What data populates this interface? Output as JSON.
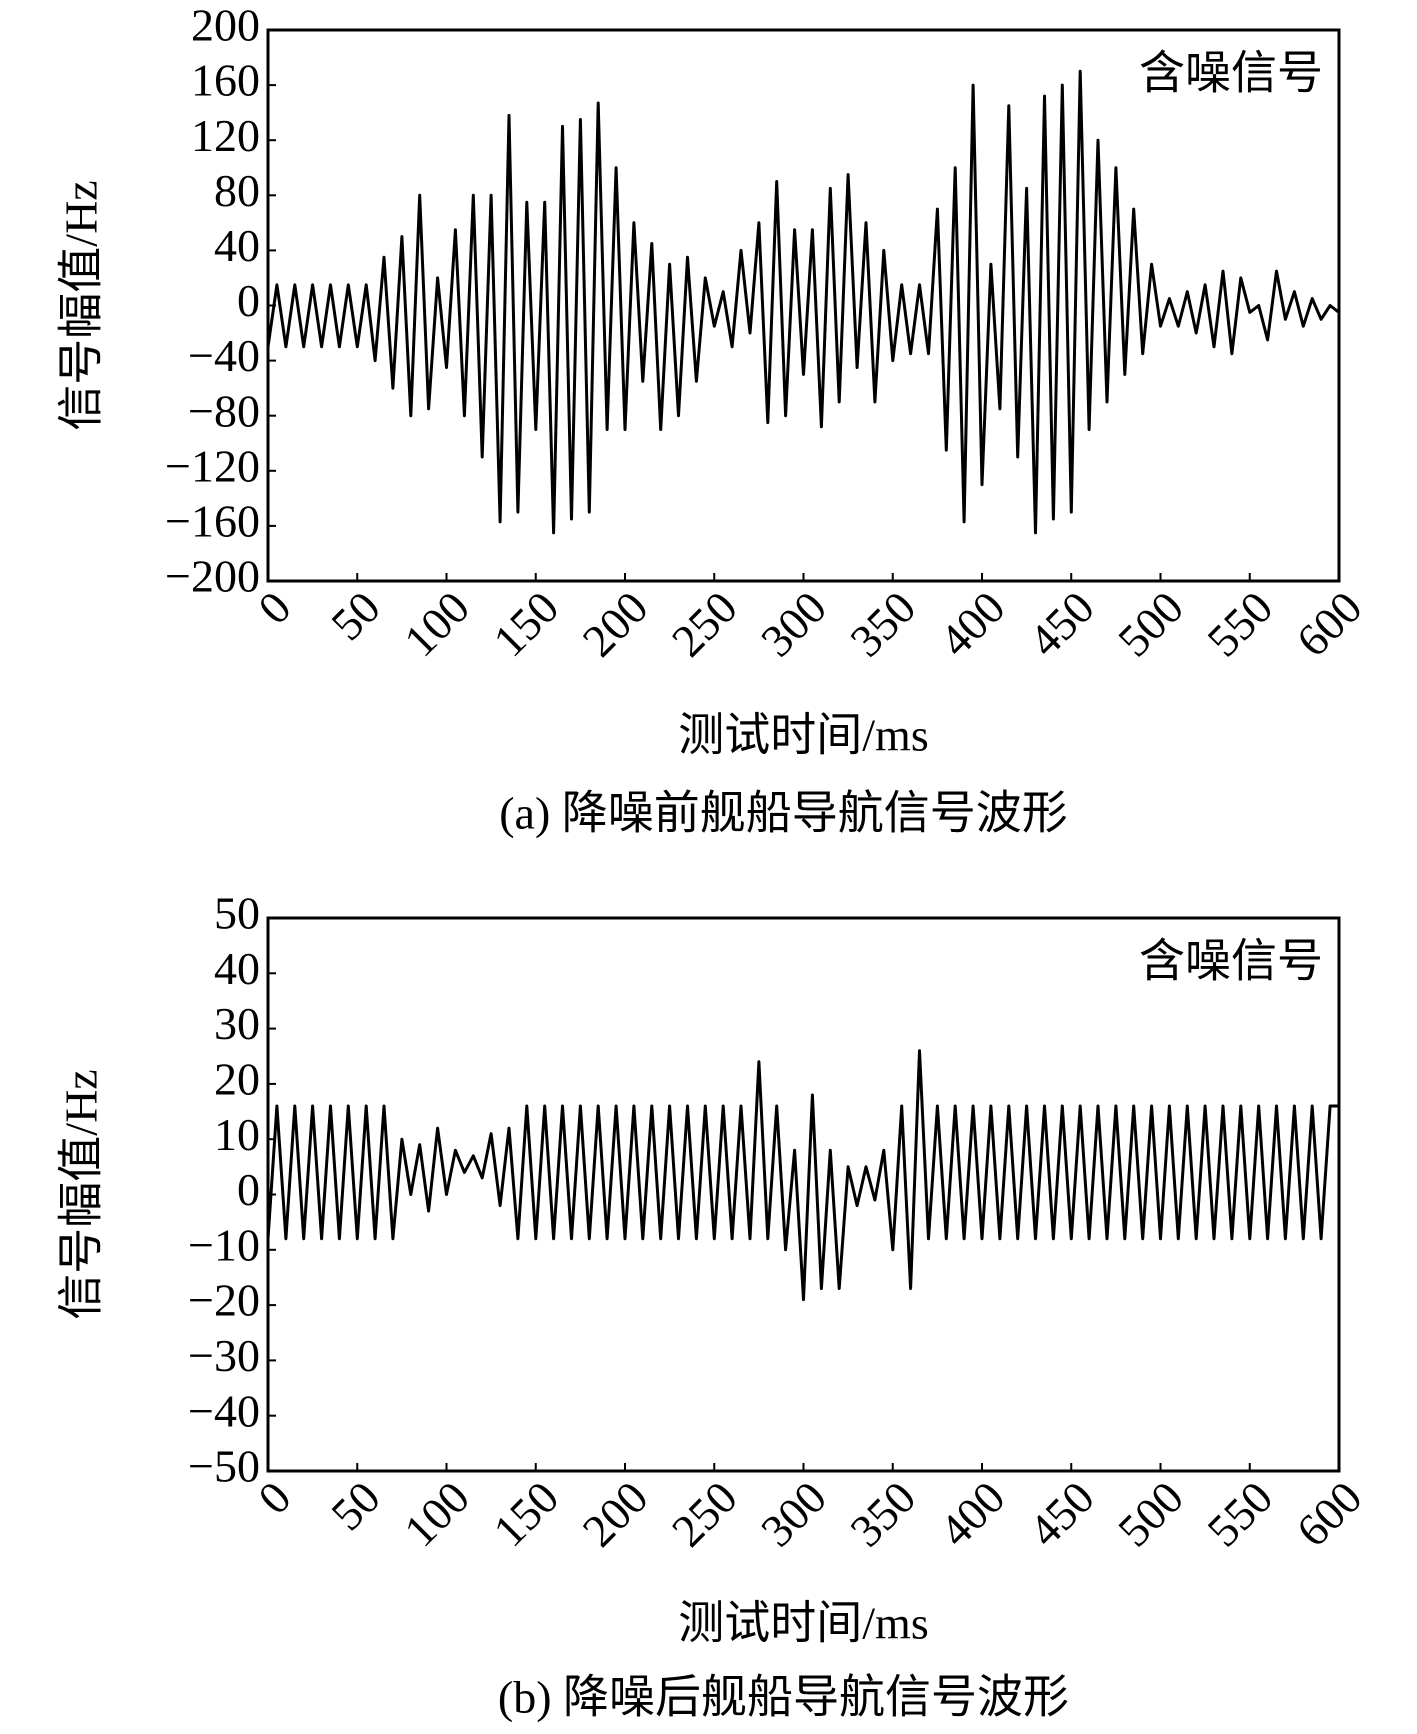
{
  "chart_data": [
    {
      "type": "line",
      "annotation": "含噪信号",
      "xlabel": "测试时间/ms",
      "ylabel": "信号幅值/Hz",
      "caption": "(a) 降噪前舰船导航信号波形",
      "color": "#000000",
      "x": [
        0,
        5,
        10,
        15,
        20,
        25,
        30,
        35,
        40,
        45,
        50,
        55,
        60,
        65,
        70,
        75,
        80,
        85,
        90,
        95,
        100,
        105,
        110,
        115,
        120,
        125,
        130,
        135,
        140,
        145,
        150,
        155,
        160,
        165,
        170,
        175,
        180,
        185,
        190,
        195,
        200,
        205,
        210,
        215,
        220,
        225,
        230,
        235,
        240,
        245,
        250,
        255,
        260,
        265,
        270,
        275,
        280,
        285,
        290,
        295,
        300,
        305,
        310,
        315,
        320,
        325,
        330,
        335,
        340,
        345,
        350,
        355,
        360,
        365,
        370,
        375,
        380,
        385,
        390,
        395,
        400,
        405,
        410,
        415,
        420,
        425,
        430,
        435,
        440,
        445,
        450,
        455,
        460,
        465,
        470,
        475,
        480,
        485,
        490,
        495,
        500,
        505,
        510,
        515,
        520,
        525,
        530,
        535,
        540,
        545,
        550,
        555,
        560,
        565,
        570,
        575,
        580,
        585,
        590,
        595,
        600
      ],
      "values": [
        -30,
        15,
        -30,
        15,
        -30,
        15,
        -30,
        15,
        -30,
        15,
        -30,
        15,
        -40,
        35,
        -60,
        50,
        -80,
        80,
        -75,
        20,
        -45,
        55,
        -80,
        80,
        -110,
        80,
        -157,
        138,
        -150,
        75,
        -90,
        75,
        -165,
        130,
        -155,
        135,
        -150,
        147,
        -90,
        100,
        -90,
        60,
        -55,
        45,
        -90,
        30,
        -80,
        35,
        -55,
        20,
        -15,
        10,
        -30,
        40,
        -20,
        60,
        -85,
        90,
        -80,
        55,
        -50,
        55,
        -88,
        85,
        -70,
        95,
        -45,
        60,
        -70,
        40,
        -40,
        15,
        -35,
        15,
        -35,
        70,
        -105,
        100,
        -157,
        160,
        -130,
        30,
        -75,
        145,
        -110,
        85,
        -165,
        152,
        -155,
        160,
        -150,
        170,
        -90,
        120,
        -70,
        100,
        -50,
        70,
        -35,
        30,
        -15,
        5,
        -15,
        10,
        -20,
        15,
        -30,
        25,
        -35,
        20,
        -5,
        0,
        -25,
        25,
        -10,
        10,
        -15,
        5,
        -10,
        0,
        -5
      ],
      "xlim": [
        0,
        600
      ],
      "xticks": [
        0,
        50,
        100,
        150,
        200,
        250,
        300,
        350,
        400,
        450,
        500,
        550,
        600
      ],
      "ylim": [
        -200,
        200
      ],
      "yticks": [
        {
          "value": -200,
          "label": "−200"
        },
        {
          "value": -160,
          "label": "−160"
        },
        {
          "value": -120,
          "label": "−120"
        },
        {
          "value": -80,
          "label": "−80"
        },
        {
          "value": -40,
          "label": "−40"
        },
        0,
        40,
        80,
        120,
        160,
        200
      ]
    },
    {
      "type": "line",
      "annotation": "含噪信号",
      "xlabel": "测试时间/ms",
      "ylabel": "信号幅值/Hz",
      "caption": "(b) 降噪后舰船导航信号波形",
      "color": "#000000",
      "x": [
        0,
        5,
        10,
        15,
        20,
        25,
        30,
        35,
        40,
        45,
        50,
        55,
        60,
        65,
        70,
        75,
        80,
        85,
        90,
        95,
        100,
        105,
        110,
        115,
        120,
        125,
        130,
        135,
        140,
        145,
        150,
        155,
        160,
        165,
        170,
        175,
        180,
        185,
        190,
        195,
        200,
        205,
        210,
        215,
        220,
        225,
        230,
        235,
        240,
        245,
        250,
        255,
        260,
        265,
        270,
        275,
        280,
        285,
        290,
        295,
        300,
        305,
        310,
        315,
        320,
        325,
        330,
        335,
        340,
        345,
        350,
        355,
        360,
        365,
        370,
        375,
        380,
        385,
        390,
        395,
        400,
        405,
        410,
        415,
        420,
        425,
        430,
        435,
        440,
        445,
        450,
        455,
        460,
        465,
        470,
        475,
        480,
        485,
        490,
        495,
        500,
        505,
        510,
        515,
        520,
        525,
        530,
        535,
        540,
        545,
        550,
        555,
        560,
        565,
        570,
        575,
        580,
        585,
        590,
        595,
        600
      ],
      "values": [
        -8,
        16,
        -8,
        16,
        -8,
        16,
        -8,
        16,
        -8,
        16,
        -8,
        16,
        -8,
        16,
        -8,
        10,
        0,
        9,
        -3,
        12,
        0,
        8,
        4,
        7,
        3,
        11,
        -2,
        12,
        -8,
        16,
        -8,
        16,
        -8,
        16,
        -8,
        16,
        -8,
        16,
        -8,
        16,
        -8,
        16,
        -8,
        16,
        -8,
        16,
        -8,
        16,
        -8,
        16,
        -8,
        16,
        -8,
        16,
        -8,
        24,
        -8,
        16,
        -10,
        8,
        -19,
        18,
        -17,
        8,
        -17,
        5,
        -2,
        5,
        -1,
        8,
        -10,
        16,
        -17,
        26,
        -8,
        16,
        -8,
        16,
        -8,
        16,
        -8,
        16,
        -8,
        16,
        -8,
        16,
        -8,
        16,
        -8,
        16,
        -8,
        16,
        -8,
        16,
        -8,
        16,
        -8,
        16,
        -8,
        16,
        -8,
        16,
        -8,
        16,
        -8,
        16,
        -8,
        16,
        -8,
        16,
        -8,
        16,
        -8,
        16,
        -8,
        16,
        -8,
        16,
        -8,
        16,
        16
      ],
      "xlim": [
        0,
        600
      ],
      "xticks": [
        0,
        50,
        100,
        150,
        200,
        250,
        300,
        350,
        400,
        450,
        500,
        550,
        600
      ],
      "ylim": [
        -50,
        50
      ],
      "yticks": [
        {
          "value": -50,
          "label": "−50"
        },
        {
          "value": -40,
          "label": "−40"
        },
        {
          "value": -30,
          "label": "−30"
        },
        {
          "value": -20,
          "label": "−20"
        },
        {
          "value": -10,
          "label": "−10"
        },
        0,
        10,
        20,
        30,
        40,
        50
      ]
    }
  ]
}
